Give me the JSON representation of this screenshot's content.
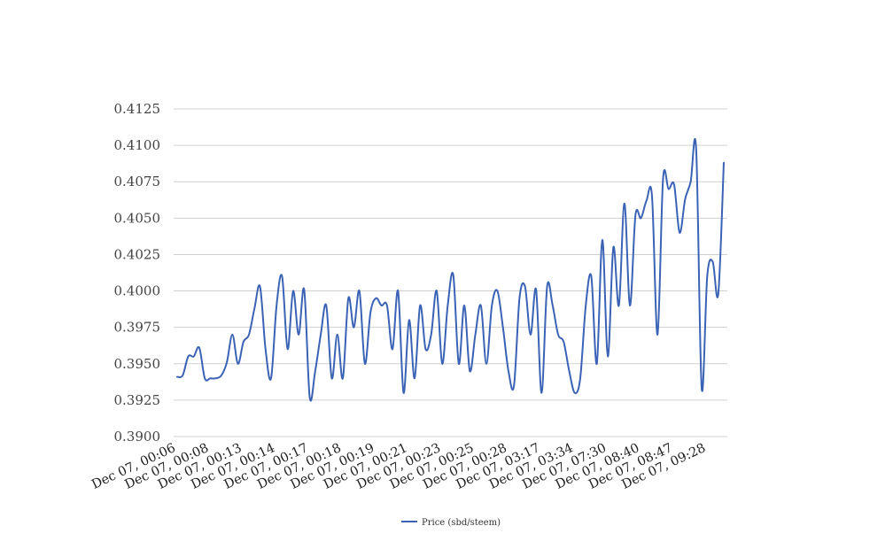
{
  "chart_data": {
    "type": "line",
    "title": "",
    "xlabel": "",
    "ylabel": "",
    "ylim": [
      0.39,
      0.4125
    ],
    "y_ticks": [
      "0.3900",
      "0.3925",
      "0.3950",
      "0.3975",
      "0.4000",
      "0.4025",
      "0.4050",
      "0.4075",
      "0.4100",
      "0.4125"
    ],
    "x_tick_labels": [
      "Dec 07, 00:06",
      "Dec 07, 00:08",
      "Dec 07, 00:13",
      "Dec 07, 00:14",
      "Dec 07, 00:17",
      "Dec 07, 00:18",
      "Dec 07, 00:19",
      "Dec 07, 00:21",
      "Dec 07, 00:23",
      "Dec 07, 00:25",
      "Dec 07, 00:28",
      "Dec 07, 03:17",
      "Dec 07, 03:34",
      "Dec 07, 07:30",
      "Dec 07, 08:40",
      "Dec 07, 08:47",
      "Dec 07, 09:28"
    ],
    "grid": true,
    "legend_position": "bottom",
    "series": [
      {
        "name": "Price (sbd/steem)",
        "color": "#3b63b5",
        "values": [
          0.3941,
          0.3942,
          0.3955,
          0.3955,
          0.3961,
          0.394,
          0.394,
          0.394,
          0.3942,
          0.3951,
          0.397,
          0.395,
          0.3965,
          0.397,
          0.3988,
          0.4003,
          0.396,
          0.394,
          0.399,
          0.401,
          0.396,
          0.4,
          0.397,
          0.4001,
          0.3927,
          0.3945,
          0.397,
          0.399,
          0.394,
          0.397,
          0.394,
          0.3995,
          0.3975,
          0.4,
          0.395,
          0.3985,
          0.3995,
          0.399,
          0.399,
          0.396,
          0.4,
          0.393,
          0.398,
          0.394,
          0.399,
          0.396,
          0.397,
          0.4,
          0.395,
          0.399,
          0.4011,
          0.395,
          0.399,
          0.3945,
          0.397,
          0.399,
          0.395,
          0.399,
          0.4,
          0.3975,
          0.3945,
          0.3935,
          0.3995,
          0.4003,
          0.397,
          0.4001,
          0.393,
          0.4003,
          0.399,
          0.397,
          0.3965,
          0.3945,
          0.393,
          0.394,
          0.399,
          0.401,
          0.395,
          0.4035,
          0.3955,
          0.403,
          0.399,
          0.406,
          0.399,
          0.4052,
          0.405,
          0.4062,
          0.4065,
          0.397,
          0.4077,
          0.407,
          0.4073,
          0.404,
          0.4063,
          0.4075,
          0.4097,
          0.3933,
          0.401,
          0.402,
          0.3998,
          0.4088
        ]
      }
    ]
  }
}
